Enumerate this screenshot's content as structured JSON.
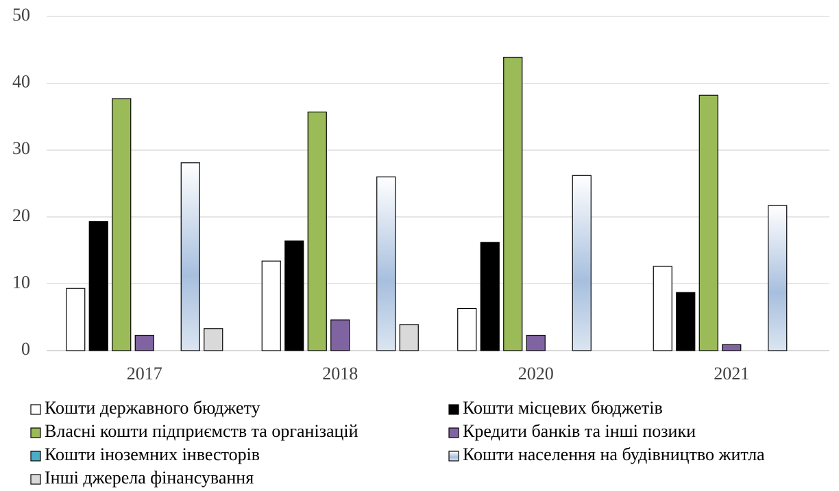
{
  "chart_data": {
    "type": "bar",
    "categories": [
      "2017",
      "2018",
      "2020",
      "2021"
    ],
    "series": [
      {
        "name": "Кошти державного бюджету",
        "color": "#ffffff",
        "values": [
          9.3,
          13.4,
          6.3,
          12.6
        ]
      },
      {
        "name": "Кошти місцевих бюджетів",
        "color": "#000000",
        "values": [
          19.3,
          16.4,
          16.2,
          8.7
        ]
      },
      {
        "name": "Власні кошти підприємств та організацій",
        "color": "#9bbb59",
        "values": [
          37.7,
          35.7,
          43.9,
          38.2
        ]
      },
      {
        "name": "Кредити банків та інші позики",
        "color": "#8064a2",
        "values": [
          2.3,
          4.6,
          2.3,
          0.9
        ]
      },
      {
        "name": "Кошти іноземних інвесторів",
        "color": "#4bacc6",
        "values": [
          0,
          0,
          0,
          0
        ]
      },
      {
        "name": "Кошти населення на будівництво житла",
        "color": "#a7bfde",
        "gradient": true,
        "values": [
          28.1,
          26.0,
          26.2,
          21.7
        ]
      },
      {
        "name": "Інші джерела фінансування",
        "color": "#d9d9d9",
        "values": [
          3.3,
          3.9,
          0,
          0
        ]
      }
    ],
    "ylim": [
      0,
      50
    ],
    "yticks": [
      0,
      10,
      20,
      30,
      40,
      50
    ],
    "grid": true,
    "legend": "bottom"
  }
}
